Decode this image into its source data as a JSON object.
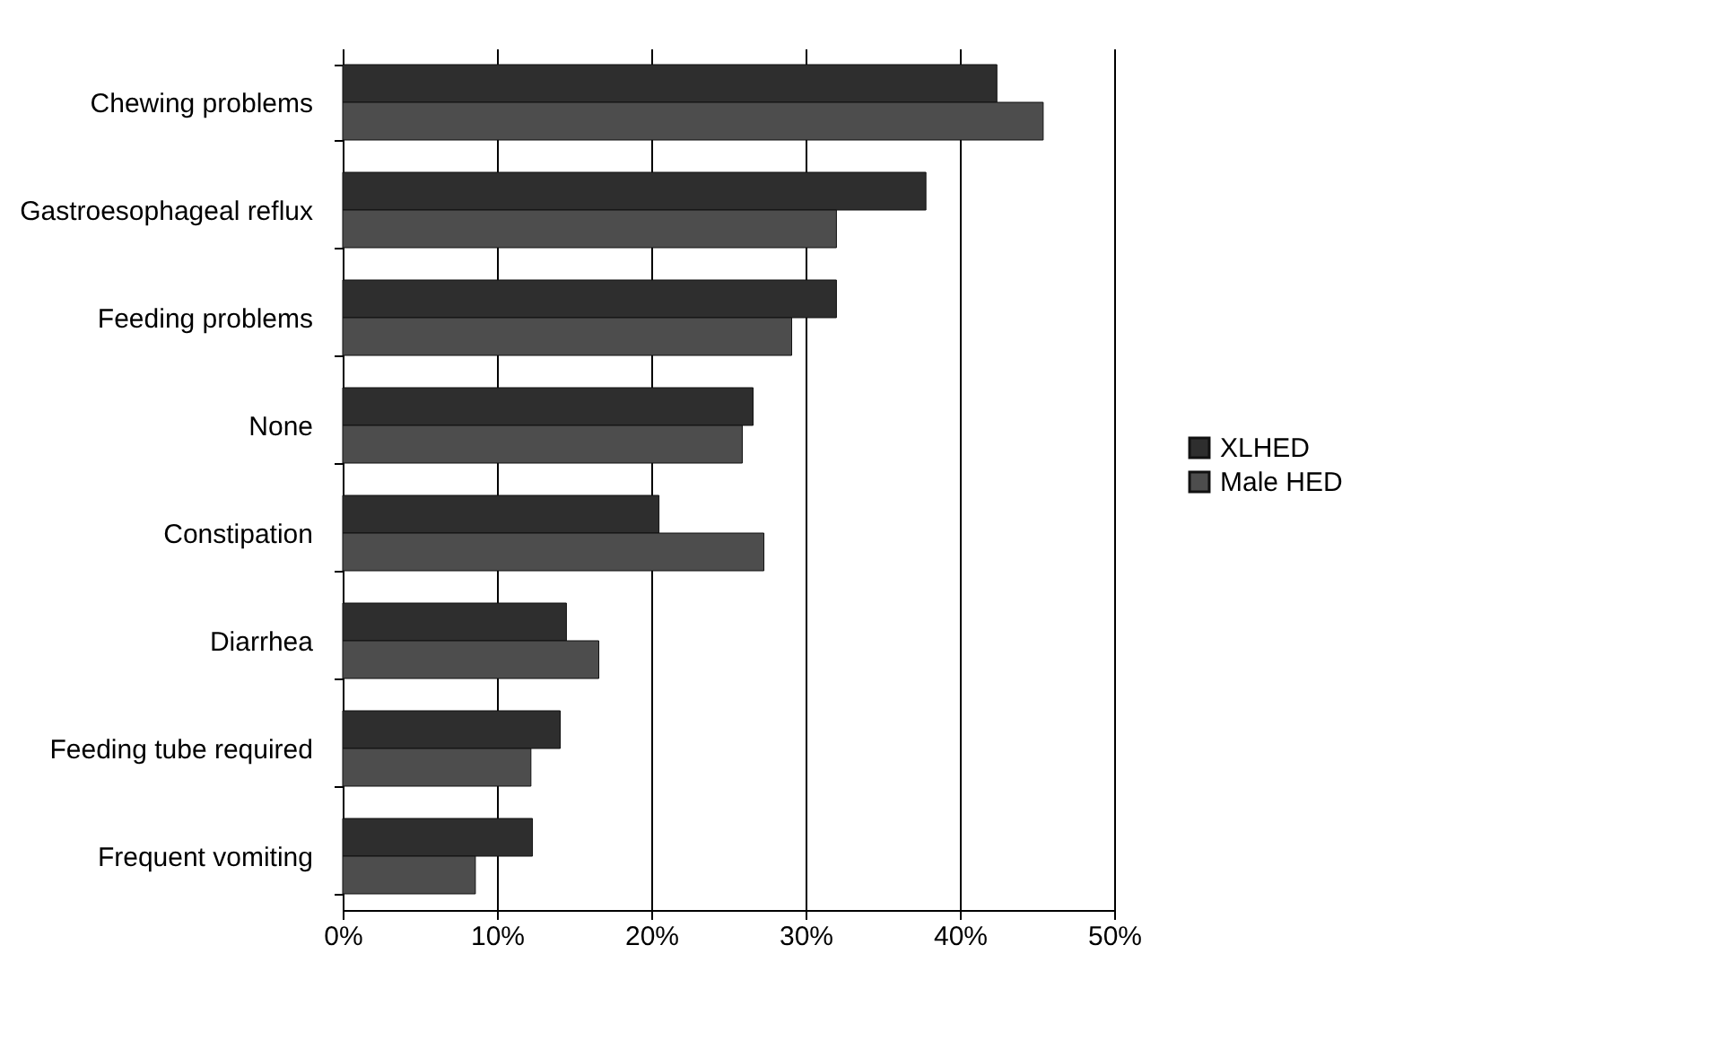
{
  "chart_data": {
    "type": "bar",
    "orientation": "horizontal",
    "categories": [
      "Chewing problems",
      "Gastroesophageal reflux",
      "Feeding problems",
      "None",
      "Constipation",
      "Diarrhea",
      "Feeding tube required",
      "Frequent vomiting"
    ],
    "series": [
      {
        "name": "XLHED",
        "color": "#2e2e2e",
        "values": [
          42.4,
          37.8,
          32.0,
          26.6,
          20.5,
          14.5,
          14.1,
          12.3
        ]
      },
      {
        "name": "Male HED",
        "color": "#4d4d4d",
        "values": [
          45.4,
          32.0,
          29.1,
          25.9,
          27.3,
          16.6,
          12.2,
          8.6
        ]
      }
    ],
    "xlim": [
      0,
      50
    ],
    "xticks": [
      {
        "value": 0,
        "label": "0%"
      },
      {
        "value": 10,
        "label": "10%"
      },
      {
        "value": 20,
        "label": "20%"
      },
      {
        "value": 30,
        "label": "30%"
      },
      {
        "value": 40,
        "label": "40%"
      },
      {
        "value": 50,
        "label": "50%"
      }
    ],
    "grid": "x",
    "legend": "right"
  }
}
